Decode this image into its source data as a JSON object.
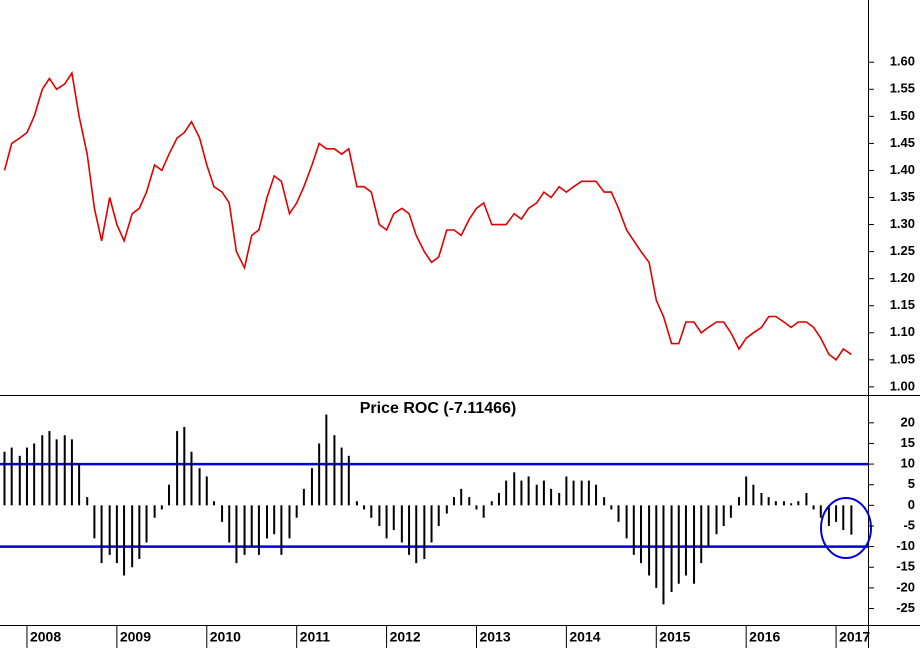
{
  "chart_data": [
    {
      "type": "line",
      "color": "#e00000",
      "xlim": [
        2007.7,
        2017.355
      ],
      "ylim": [
        0.985,
        1.715
      ],
      "yticks": [
        {
          "value": 1.0,
          "label": "1.00"
        },
        {
          "value": 1.05,
          "label": "1.05"
        },
        {
          "value": 1.1,
          "label": "1.10"
        },
        {
          "value": 1.15,
          "label": "1.15"
        },
        {
          "value": 1.2,
          "label": "1.20"
        },
        {
          "value": 1.25,
          "label": "1.25"
        },
        {
          "value": 1.3,
          "label": "1.30"
        },
        {
          "value": 1.35,
          "label": "1.35"
        },
        {
          "value": 1.4,
          "label": "1.40"
        },
        {
          "value": 1.45,
          "label": "1.45"
        },
        {
          "value": 1.5,
          "label": "1.50"
        },
        {
          "value": 1.55,
          "label": "1.55"
        },
        {
          "value": 1.6,
          "label": "1.60"
        }
      ],
      "x": [
        2007.75,
        2007.83,
        2007.92,
        2008.0,
        2008.08,
        2008.17,
        2008.25,
        2008.33,
        2008.42,
        2008.5,
        2008.58,
        2008.67,
        2008.75,
        2008.83,
        2008.92,
        2009.0,
        2009.08,
        2009.17,
        2009.25,
        2009.33,
        2009.42,
        2009.5,
        2009.58,
        2009.67,
        2009.75,
        2009.83,
        2009.92,
        2010.0,
        2010.08,
        2010.17,
        2010.25,
        2010.33,
        2010.42,
        2010.5,
        2010.58,
        2010.67,
        2010.75,
        2010.83,
        2010.92,
        2011.0,
        2011.08,
        2011.17,
        2011.25,
        2011.33,
        2011.42,
        2011.5,
        2011.58,
        2011.67,
        2011.75,
        2011.83,
        2011.92,
        2012.0,
        2012.08,
        2012.17,
        2012.25,
        2012.33,
        2012.42,
        2012.5,
        2012.58,
        2012.67,
        2012.75,
        2012.83,
        2012.92,
        2013.0,
        2013.08,
        2013.17,
        2013.25,
        2013.33,
        2013.42,
        2013.5,
        2013.58,
        2013.67,
        2013.75,
        2013.83,
        2013.92,
        2014.0,
        2014.08,
        2014.17,
        2014.25,
        2014.33,
        2014.42,
        2014.5,
        2014.58,
        2014.67,
        2014.75,
        2014.83,
        2014.92,
        2015.0,
        2015.08,
        2015.17,
        2015.25,
        2015.33,
        2015.42,
        2015.5,
        2015.58,
        2015.67,
        2015.75,
        2015.83,
        2015.92,
        2016.0,
        2016.08,
        2016.17,
        2016.25,
        2016.33,
        2016.42,
        2016.5,
        2016.58,
        2016.67,
        2016.75,
        2016.83,
        2016.92,
        2017.0,
        2017.08,
        2017.17
      ],
      "values": [
        1.4,
        1.45,
        1.46,
        1.47,
        1.5,
        1.55,
        1.57,
        1.55,
        1.56,
        1.58,
        1.5,
        1.43,
        1.33,
        1.27,
        1.35,
        1.3,
        1.27,
        1.32,
        1.33,
        1.36,
        1.41,
        1.4,
        1.43,
        1.46,
        1.47,
        1.49,
        1.46,
        1.41,
        1.37,
        1.36,
        1.34,
        1.25,
        1.22,
        1.28,
        1.29,
        1.35,
        1.39,
        1.38,
        1.32,
        1.34,
        1.37,
        1.41,
        1.45,
        1.44,
        1.44,
        1.43,
        1.44,
        1.37,
        1.37,
        1.36,
        1.3,
        1.29,
        1.32,
        1.33,
        1.32,
        1.28,
        1.25,
        1.23,
        1.24,
        1.29,
        1.29,
        1.28,
        1.31,
        1.33,
        1.34,
        1.3,
        1.3,
        1.3,
        1.32,
        1.31,
        1.33,
        1.34,
        1.36,
        1.35,
        1.37,
        1.36,
        1.37,
        1.38,
        1.38,
        1.38,
        1.36,
        1.36,
        1.33,
        1.29,
        1.27,
        1.25,
        1.23,
        1.16,
        1.13,
        1.08,
        1.08,
        1.12,
        1.12,
        1.1,
        1.11,
        1.12,
        1.12,
        1.1,
        1.07,
        1.09,
        1.1,
        1.11,
        1.13,
        1.13,
        1.12,
        1.11,
        1.12,
        1.12,
        1.11,
        1.09,
        1.06,
        1.05,
        1.07,
        1.06
      ]
    },
    {
      "type": "bar",
      "title": "Price ROC (-7.11466)",
      "color": "#000000",
      "xlim": [
        2007.7,
        2017.355
      ],
      "ylim": [
        -29,
        26.5
      ],
      "yticks": [
        -25,
        -20,
        -15,
        -10,
        -5,
        0,
        5,
        10,
        15,
        20
      ],
      "xticks": [
        2008,
        2009,
        2010,
        2011,
        2012,
        2013,
        2014,
        2015,
        2016,
        2017
      ],
      "hlines": [
        10,
        -10
      ],
      "hline_color": "#0000dd",
      "x": [
        2007.75,
        2007.83,
        2007.92,
        2008.0,
        2008.08,
        2008.17,
        2008.25,
        2008.33,
        2008.42,
        2008.5,
        2008.58,
        2008.67,
        2008.75,
        2008.83,
        2008.92,
        2009.0,
        2009.08,
        2009.17,
        2009.25,
        2009.33,
        2009.42,
        2009.5,
        2009.58,
        2009.67,
        2009.75,
        2009.83,
        2009.92,
        2010.0,
        2010.08,
        2010.17,
        2010.25,
        2010.33,
        2010.42,
        2010.5,
        2010.58,
        2010.67,
        2010.75,
        2010.83,
        2010.92,
        2011.0,
        2011.08,
        2011.17,
        2011.25,
        2011.33,
        2011.42,
        2011.5,
        2011.58,
        2011.67,
        2011.75,
        2011.83,
        2011.92,
        2012.0,
        2012.08,
        2012.17,
        2012.25,
        2012.33,
        2012.42,
        2012.5,
        2012.58,
        2012.67,
        2012.75,
        2012.83,
        2012.92,
        2013.0,
        2013.08,
        2013.17,
        2013.25,
        2013.33,
        2013.42,
        2013.5,
        2013.58,
        2013.67,
        2013.75,
        2013.83,
        2013.92,
        2014.0,
        2014.08,
        2014.17,
        2014.25,
        2014.33,
        2014.42,
        2014.5,
        2014.58,
        2014.67,
        2014.75,
        2014.83,
        2014.92,
        2015.0,
        2015.08,
        2015.17,
        2015.25,
        2015.33,
        2015.42,
        2015.5,
        2015.58,
        2015.67,
        2015.75,
        2015.83,
        2015.92,
        2016.0,
        2016.08,
        2016.17,
        2016.25,
        2016.33,
        2016.42,
        2016.5,
        2016.58,
        2016.67,
        2016.75,
        2016.83,
        2016.92,
        2017.0,
        2017.08,
        2017.17
      ],
      "values": [
        13,
        14,
        12,
        14,
        15,
        17,
        18,
        16,
        17,
        16,
        10,
        2,
        -8,
        -14,
        -12,
        -14,
        -17,
        -15,
        -13,
        -9,
        -3,
        -1,
        5,
        18,
        19,
        13,
        9,
        7,
        1,
        -4,
        -9,
        -14,
        -12,
        -10,
        -12,
        -8,
        -7,
        -12,
        -8,
        -3,
        4,
        9,
        15,
        22,
        17,
        14,
        12,
        1,
        -1,
        -3,
        -5,
        -8,
        -6,
        -9,
        -12,
        -14,
        -13,
        -9,
        -5,
        -2,
        2,
        4,
        2,
        -1,
        -3,
        1,
        3,
        6,
        8,
        6,
        7,
        5,
        6,
        4,
        3,
        7,
        6,
        6,
        6,
        5,
        2,
        -1,
        -4,
        -8,
        -12,
        -14,
        -17,
        -20,
        -24,
        -21,
        -19,
        -17,
        -19,
        -14,
        -10,
        -7,
        -5,
        -3,
        2,
        7,
        5,
        3,
        2,
        1,
        1,
        0.5,
        1,
        3,
        -1,
        -3,
        -5,
        -4,
        -6,
        -7.11466
      ]
    }
  ]
}
